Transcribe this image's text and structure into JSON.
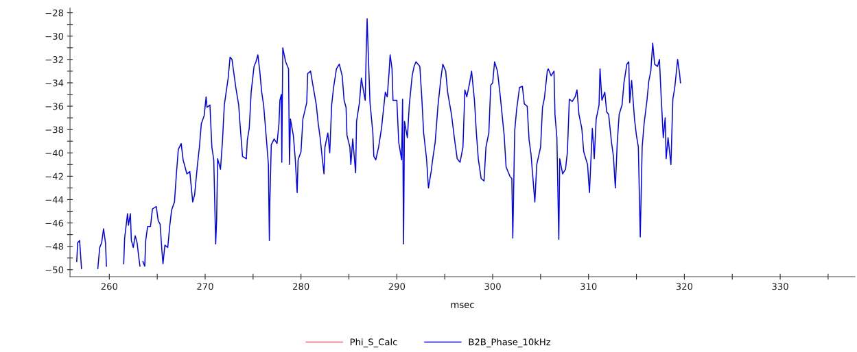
{
  "chart_data": {
    "type": "line",
    "xlabel": "msec",
    "legend": "bottom",
    "grid": false,
    "xlim": [
      255.9,
      337.8
    ],
    "ylim": [
      -50.6,
      -27.6
    ],
    "xticks": [
      260,
      {
        "value": 265,
        "label": null
      },
      270,
      {
        "value": 275,
        "label": null
      },
      280,
      {
        "value": 285,
        "label": null
      },
      290,
      {
        "value": 295,
        "label": null
      },
      300,
      {
        "value": 305,
        "label": null
      },
      310,
      {
        "value": 315,
        "label": null
      },
      320,
      {
        "value": 325,
        "label": null
      },
      330,
      {
        "value": 335,
        "label": null
      }
    ],
    "yticks": [
      -50,
      {
        "value": -49,
        "label": null
      },
      -48,
      {
        "value": -47,
        "label": null
      },
      -46,
      {
        "value": -45,
        "label": null
      },
      -44,
      {
        "value": -43,
        "label": null
      },
      -42,
      {
        "value": -41,
        "label": null
      },
      -40,
      {
        "value": -39,
        "label": null
      },
      -38,
      {
        "value": -37,
        "label": null
      },
      -36,
      {
        "value": -35,
        "label": null
      },
      -34,
      {
        "value": -33,
        "label": null
      },
      -32,
      {
        "value": -31,
        "label": null
      },
      -30,
      {
        "value": -29,
        "label": null
      },
      -28
    ],
    "series": [
      {
        "name": "Phi_S_Calc",
        "color": "#e06060"
      },
      {
        "name": "B2B_Phase_10kHz",
        "color": "#0000ff",
        "x": [
          256.6,
          256.7,
          256.9,
          257.1,
          257.2,
          258.8,
          259.0,
          259.2,
          259.4,
          259.6,
          259.7,
          259.8,
          261.5,
          261.6,
          261.9,
          262.0,
          262.2,
          262.3,
          262.5,
          262.7,
          262.9,
          263.1,
          263.2,
          263.4,
          263.5,
          263.7,
          263.8,
          264.0,
          264.3,
          264.5,
          264.9,
          265.1,
          265.3,
          265.5,
          265.6,
          265.8,
          266.1,
          266.3,
          266.5,
          266.8,
          267.0,
          267.2,
          267.5,
          267.7,
          268.1,
          268.4,
          268.7,
          268.9,
          269.2,
          269.4,
          269.6,
          269.9,
          270.1,
          270.2,
          270.5,
          270.7,
          270.9,
          271.1,
          271.2,
          271.3,
          271.6,
          271.8,
          272.0,
          272.4,
          272.6,
          272.8,
          273.2,
          273.5,
          273.6,
          273.9,
          274.3,
          274.4,
          274.6,
          274.8,
          275.1,
          275.3,
          275.5,
          275.7,
          275.9,
          276.1,
          276.4,
          276.6,
          276.7,
          276.75,
          276.9,
          277.2,
          277.5,
          277.7,
          277.8,
          277.95,
          278.0,
          278.1,
          278.4,
          278.7,
          278.8,
          278.9,
          279.2,
          279.4,
          279.6,
          279.7,
          280.0,
          280.2,
          280.6,
          280.7,
          281.0,
          281.2,
          281.6,
          281.8,
          282.0,
          282.2,
          282.4,
          282.5,
          282.8,
          283.0,
          283.2,
          283.4,
          283.7,
          284.0,
          284.3,
          284.5,
          284.7,
          284.8,
          285.1,
          285.2,
          285.4,
          285.7,
          285.8,
          286.1,
          286.3,
          286.5,
          286.7,
          286.8,
          286.9,
          287.0,
          287.2,
          287.5,
          287.6,
          287.8,
          288.1,
          288.4,
          288.8,
          289.0,
          289.2,
          289.3,
          289.5,
          289.6,
          290.0,
          290.2,
          290.5,
          290.6,
          290.7,
          290.8,
          291.1,
          291.3,
          291.6,
          291.8,
          292.0,
          292.4,
          292.6,
          292.8,
          293.1,
          293.3,
          293.6,
          293.7,
          294.0,
          294.3,
          294.6,
          294.8,
          295.1,
          295.3,
          295.7,
          296.0,
          296.3,
          296.6,
          296.9,
          297.1,
          297.3,
          297.6,
          297.8,
          298.1,
          298.3,
          298.5,
          298.8,
          299.1,
          299.3,
          299.6,
          299.8,
          300.0,
          300.2,
          300.5,
          300.8,
          301.2,
          301.4,
          301.8,
          302.0,
          302.1,
          302.3,
          302.5,
          302.8,
          303.1,
          303.3,
          303.6,
          303.8,
          304.0,
          304.4,
          304.6,
          305.0,
          305.2,
          305.4,
          305.7,
          305.8,
          306.1,
          306.4,
          306.5,
          306.7,
          306.9,
          307.0,
          307.3,
          307.6,
          307.8,
          308.0,
          308.3,
          308.6,
          308.8,
          309.0,
          309.3,
          309.5,
          309.9,
          310.1,
          310.4,
          310.6,
          310.8,
          311.1,
          311.2,
          311.4,
          311.7,
          311.9,
          312.1,
          312.4,
          312.6,
          312.8,
          313.0,
          313.2,
          313.5,
          313.7,
          314.0,
          314.2,
          314.3,
          314.5,
          314.8,
          315.0,
          315.2,
          315.4,
          315.6,
          315.8,
          316.1,
          316.3,
          316.5,
          316.7,
          316.9,
          317.2,
          317.4,
          317.6,
          317.8,
          318.0,
          318.1,
          318.3,
          318.6,
          318.8,
          319.0,
          319.3,
          319.5,
          319.6
        ],
        "values": [
          -49.3,
          -47.7,
          -47.5,
          -49.9,
          null,
          -49.9,
          -48.1,
          -47.7,
          -46.5,
          -47.7,
          -49.7,
          null,
          -49.5,
          -47.3,
          -45.2,
          -46.2,
          -45.2,
          -47.5,
          -48.1,
          -47.1,
          -47.7,
          -49.1,
          -49.7,
          null,
          -49.3,
          -49.7,
          -47.5,
          -46.3,
          -46.3,
          -44.8,
          -44.6,
          -45.8,
          -46.1,
          -48.5,
          -49.5,
          -47.9,
          -48.1,
          -46.3,
          -44.9,
          -44.2,
          -41.8,
          -39.7,
          -39.2,
          -40.6,
          -41.8,
          -41.6,
          -44.2,
          -43.6,
          -41.0,
          -39.5,
          -37.5,
          -36.8,
          -35.2,
          -36.1,
          -35.9,
          -39.5,
          -40.6,
          -47.8,
          -45.7,
          -40.5,
          -41.4,
          -39.1,
          -35.9,
          -33.6,
          -31.8,
          -32.0,
          -34.4,
          -35.9,
          -37.1,
          -40.3,
          -40.5,
          -38.9,
          -37.9,
          -34.8,
          -32.6,
          -32.2,
          -31.6,
          -33.0,
          -34.8,
          -35.9,
          -38.9,
          -41.0,
          -47.5,
          -44.2,
          -39.3,
          -38.8,
          -39.2,
          -37.5,
          -35.5,
          -35.0,
          -40.8,
          -31.0,
          -32.2,
          -32.8,
          -41.0,
          -37.1,
          -38.5,
          -40.5,
          -43.4,
          -40.6,
          -39.9,
          -37.1,
          -35.7,
          -33.2,
          -33.0,
          -34.0,
          -35.9,
          -37.5,
          -38.7,
          -40.3,
          -41.8,
          -39.5,
          -38.3,
          -40.0,
          -35.9,
          -34.4,
          -32.8,
          -32.4,
          -33.4,
          -35.5,
          -36.1,
          -38.5,
          -39.5,
          -41.0,
          -38.8,
          -41.7,
          -37.3,
          -35.7,
          -33.6,
          -34.6,
          -35.5,
          -31.6,
          -28.5,
          -31.0,
          -35.7,
          -38.3,
          -40.3,
          -40.6,
          -39.5,
          -37.9,
          -34.8,
          -35.2,
          -33.0,
          -31.6,
          -32.8,
          -35.5,
          -35.5,
          -39.1,
          -40.6,
          -35.4,
          -47.8,
          -37.3,
          -38.7,
          -35.9,
          -33.4,
          -32.6,
          -32.2,
          -32.6,
          -35.2,
          -38.3,
          -40.5,
          -43.0,
          -41.5,
          -40.8,
          -39.1,
          -35.9,
          -33.6,
          -32.4,
          -33.0,
          -34.8,
          -36.7,
          -38.7,
          -40.5,
          -40.8,
          -39.5,
          -34.6,
          -35.2,
          -34.0,
          -33.0,
          -35.5,
          -38.3,
          -40.5,
          -42.2,
          -42.4,
          -39.5,
          -38.3,
          -34.2,
          -34.0,
          -32.2,
          -33.0,
          -35.2,
          -38.5,
          -41.2,
          -42.0,
          -42.2,
          -47.3,
          -38.1,
          -36.3,
          -34.4,
          -34.3,
          -35.8,
          -36.0,
          -38.9,
          -40.1,
          -44.2,
          -41.0,
          -39.5,
          -36.1,
          -35.3,
          -33.0,
          -32.8,
          -33.4,
          -33.0,
          -36.7,
          -38.7,
          -47.4,
          -40.5,
          -41.8,
          -41.4,
          -39.9,
          -35.4,
          -35.6,
          -35.2,
          -34.6,
          -36.7,
          -37.9,
          -39.9,
          -41.0,
          -43.4,
          -37.9,
          -40.5,
          -37.1,
          -35.9,
          -32.8,
          -35.5,
          -34.8,
          -36.5,
          -36.7,
          -39.1,
          -40.3,
          -43.0,
          -39.1,
          -36.7,
          -35.9,
          -34.0,
          -32.4,
          -32.2,
          -35.7,
          -33.8,
          -37.1,
          -38.5,
          -39.5,
          -47.2,
          -39.5,
          -37.5,
          -35.5,
          -33.8,
          -33.0,
          -30.6,
          -32.4,
          -32.6,
          -32.0,
          -35.5,
          -38.7,
          -37.0,
          -40.5,
          -38.7,
          -41.0,
          -35.4,
          -34.4,
          -32.0,
          -33.2,
          -34.0
        ]
      }
    ]
  }
}
